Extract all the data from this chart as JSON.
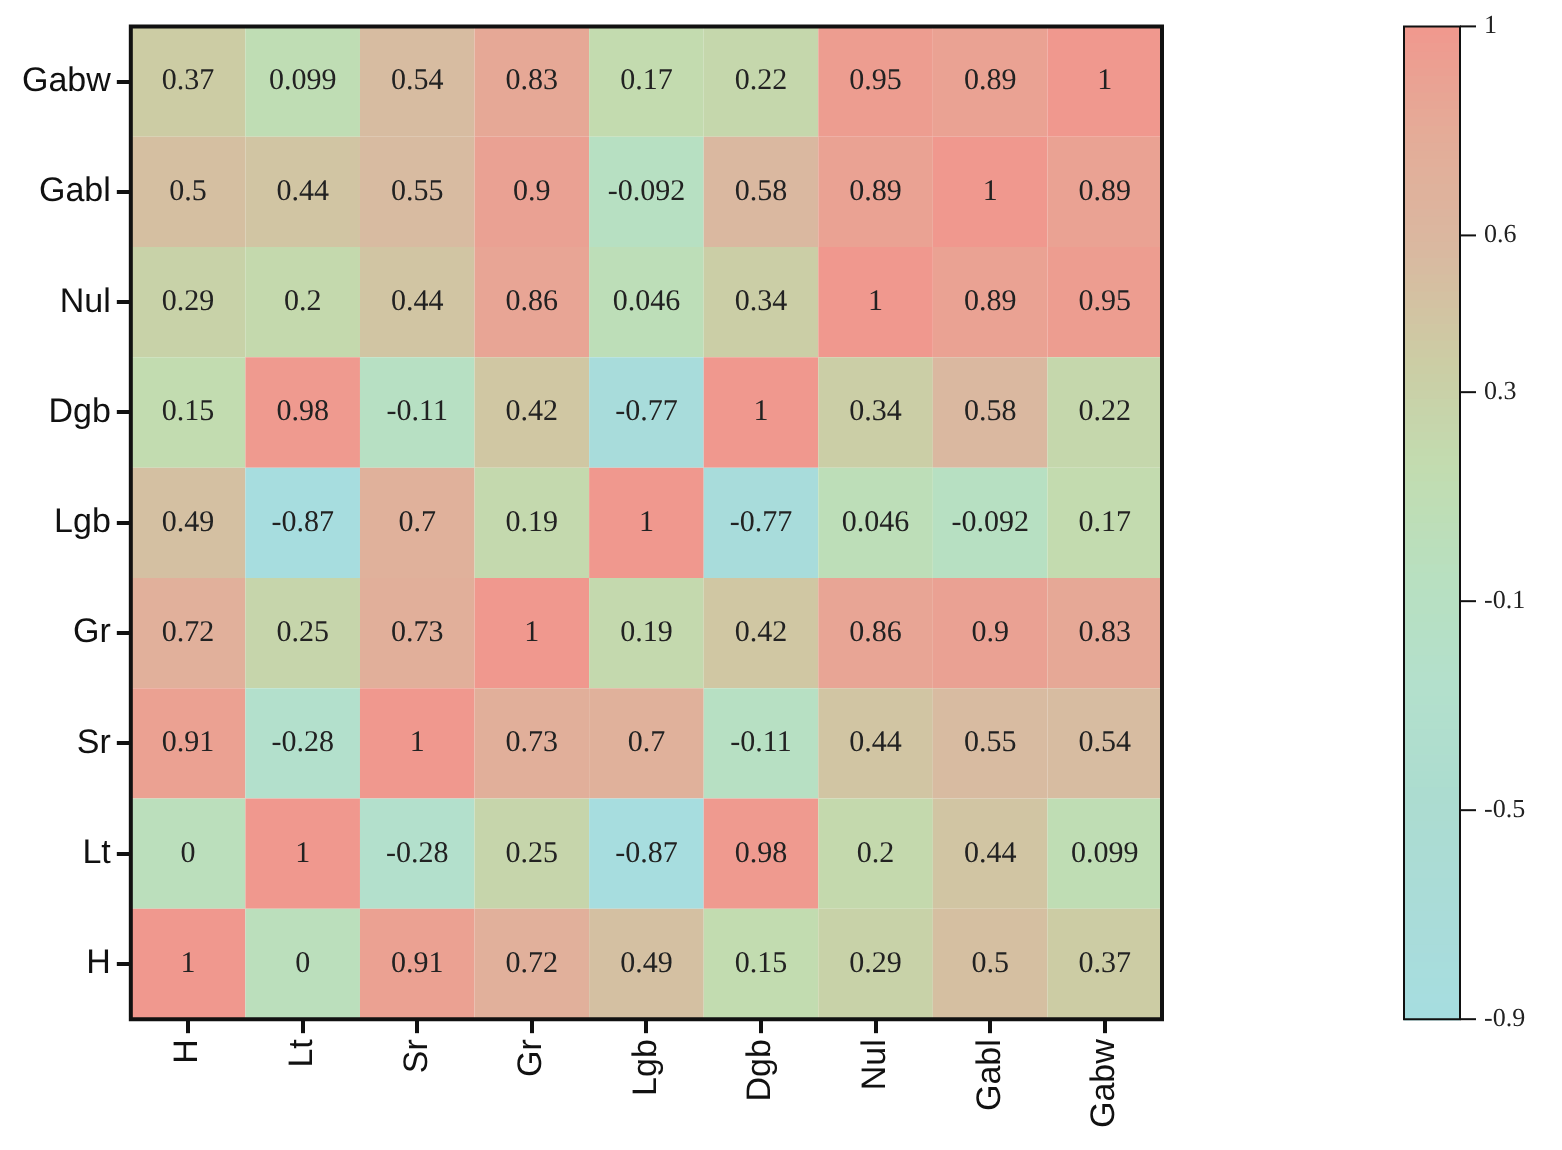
{
  "chart_data": {
    "type": "heatmap",
    "categories": [
      "H",
      "Lt",
      "Sr",
      "Gr",
      "Lgb",
      "Dgb",
      "Nul",
      "Gabl",
      "Gabw"
    ],
    "y_categories": [
      "Gabw",
      "Gabl",
      "Nul",
      "Dgb",
      "Lgb",
      "Gr",
      "Sr",
      "Lt",
      "H"
    ],
    "cells": [
      [
        0.37,
        0.099,
        0.54,
        0.83,
        0.17,
        0.22,
        0.95,
        0.89,
        1
      ],
      [
        0.5,
        0.44,
        0.55,
        0.9,
        -0.092,
        0.58,
        0.89,
        1,
        0.89
      ],
      [
        0.29,
        0.2,
        0.44,
        0.86,
        0.046,
        0.34,
        1,
        0.89,
        0.95
      ],
      [
        0.15,
        0.98,
        -0.11,
        0.42,
        -0.77,
        1,
        0.34,
        0.58,
        0.22
      ],
      [
        0.49,
        -0.87,
        0.7,
        0.19,
        1,
        -0.77,
        0.046,
        -0.092,
        0.17
      ],
      [
        0.72,
        0.25,
        0.73,
        1,
        0.19,
        0.42,
        0.86,
        0.9,
        0.83
      ],
      [
        0.91,
        -0.28,
        1,
        0.73,
        0.7,
        -0.11,
        0.44,
        0.55,
        0.54
      ],
      [
        0,
        1,
        -0.28,
        0.25,
        -0.87,
        0.98,
        0.2,
        0.44,
        0.099
      ],
      [
        1,
        0,
        0.91,
        0.72,
        0.49,
        0.15,
        0.29,
        0.5,
        0.37
      ]
    ],
    "clim": [
      -0.9,
      1
    ],
    "cticks": [
      1,
      0.6,
      0.3,
      -0.1,
      -0.5,
      -0.9
    ],
    "colors": [
      "#a6dde0",
      "#aadcd8",
      "#acdcd0",
      "#b3e0cc",
      "#b8e0c0",
      "#c2dcb0",
      "#cccca4",
      "#dab8a0",
      "#e4ac98",
      "#f0988e"
    ],
    "data_labels": true
  }
}
